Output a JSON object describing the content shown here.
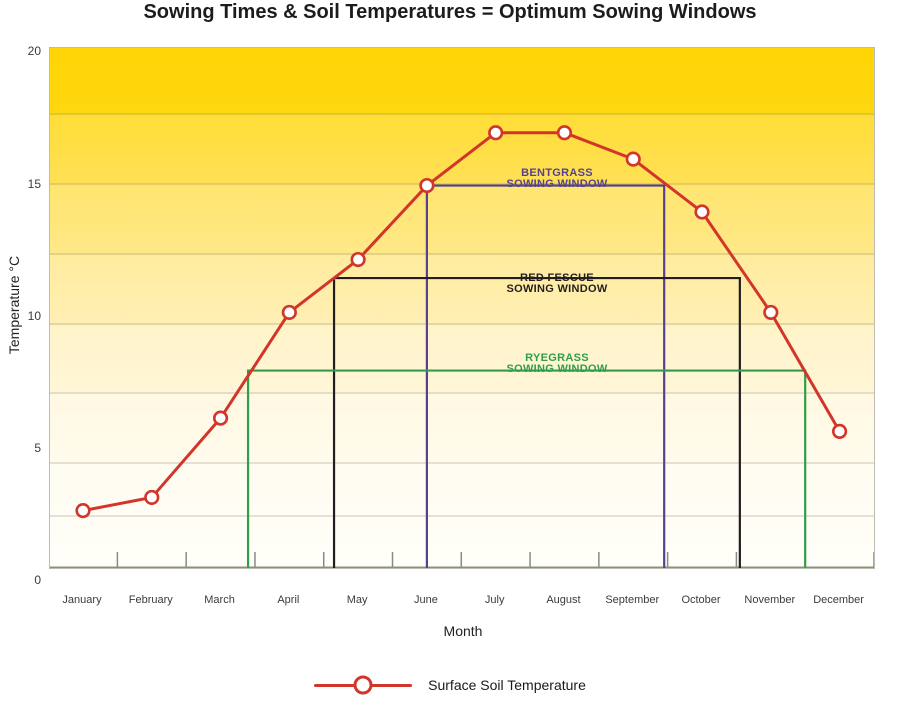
{
  "title": "Sowing Times & Soil Temperatures = Optimum Sowing Windows",
  "colors": {
    "line_red": "#d2362b",
    "bentgrass_purple": "#55418f",
    "red_fescue_black": "#221e1f",
    "ryegrass_green": "#2f9e4b",
    "background_yellow_top": "#ffd506",
    "background_bottom": "#fffef9"
  },
  "chart_data": {
    "type": "line",
    "title": "Sowing Times & Soil Temperatures = Optimum Sowing Windows",
    "xlabel": "Month",
    "ylabel": "Temperature °C",
    "ylim": [
      0,
      20
    ],
    "yticks": [
      20,
      15,
      10,
      5,
      0
    ],
    "grid": "faint horizontal bands, yellow-to-white vertical gradient background",
    "legend_position": "bottom-center",
    "categories": [
      "January",
      "February",
      "March",
      "April",
      "May",
      "June",
      "July",
      "August",
      "September",
      "October",
      "November",
      "December"
    ],
    "series": [
      {
        "name": "Surface Soil Temperature",
        "color": "#d2362b",
        "marker": "open-circle",
        "values": [
          2.7,
          3.2,
          6.2,
          10.2,
          12.2,
          15.0,
          17.0,
          17.0,
          16.0,
          14.0,
          10.2,
          5.7
        ]
      }
    ],
    "windows": [
      {
        "label_line1": "BENTGRASS",
        "label_line2": "SOWING WINDOW",
        "temperature_c": 15,
        "start_month_index": 5.0,
        "end_month_index": 8.45,
        "color": "#55418f"
      },
      {
        "label_line1": "RED FESCUE",
        "label_line2": "SOWING WINDOW",
        "temperature_c": 11.5,
        "start_month_index": 3.65,
        "end_month_index": 9.55,
        "color": "#221e1f"
      },
      {
        "label_line1": "RYEGRASS",
        "label_line2": "SOWING WINDOW",
        "temperature_c": 8,
        "start_month_index": 2.4,
        "end_month_index": 10.5,
        "color": "#2f9e4b"
      }
    ]
  },
  "legend": {
    "label": "Surface Soil Temperature"
  }
}
